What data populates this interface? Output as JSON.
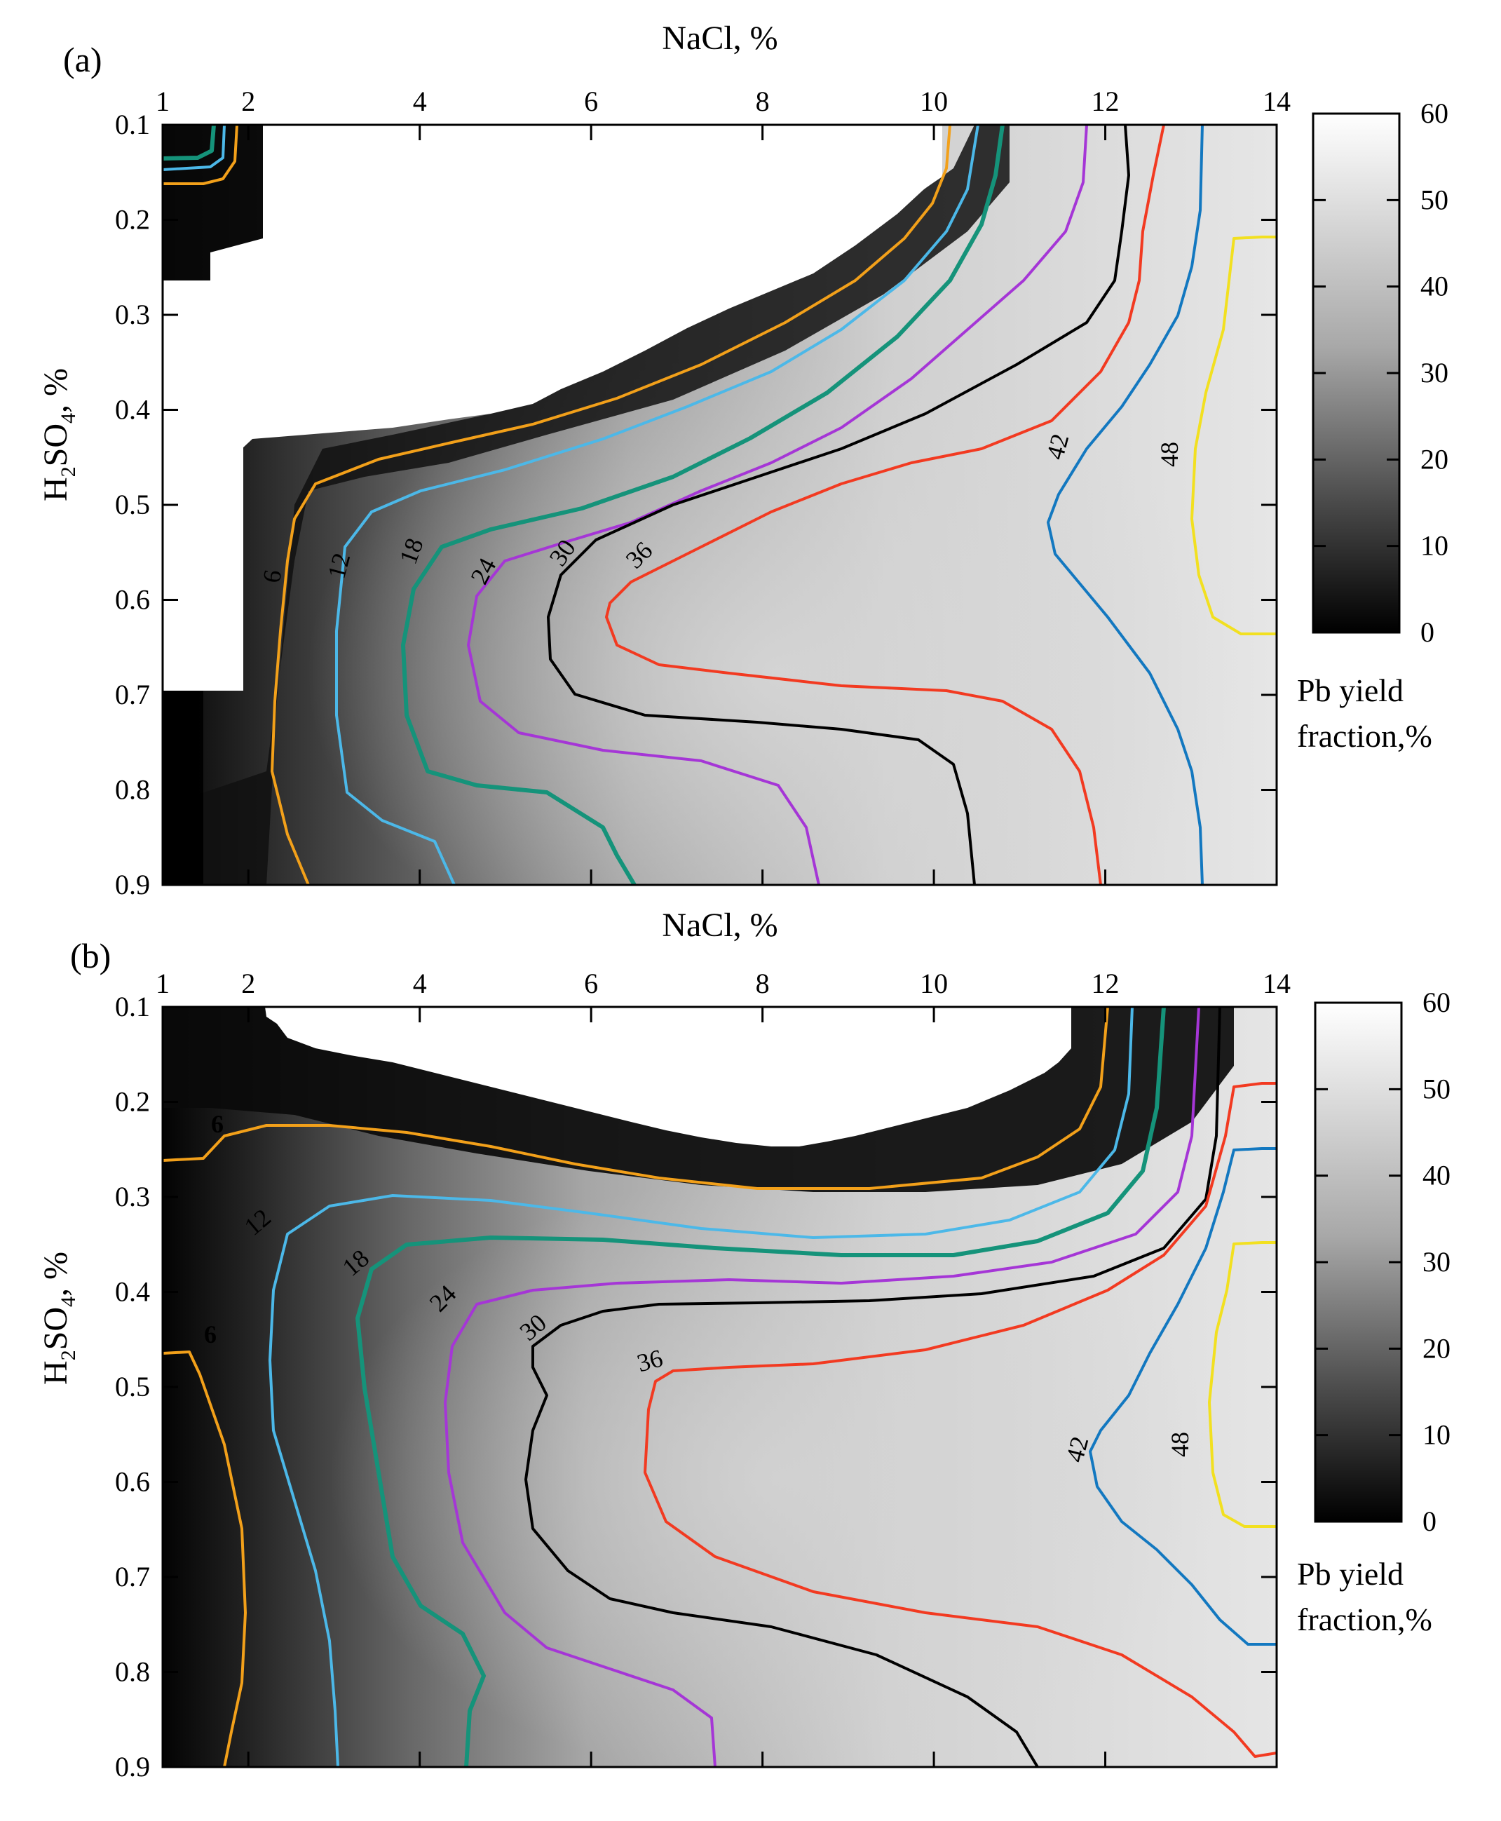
{
  "figure": {
    "color_scale": {
      "min": 0,
      "max": 60,
      "low_color": "#000000",
      "high_color": "#ffffff"
    },
    "contour_colors": {
      "6": "#f2a01a",
      "12": "#4cb8e8",
      "18": "#15937a",
      "24": "#a536d6",
      "30": "#000000",
      "36": "#f23a21",
      "42": "#1378c0",
      "48": "#f2e020"
    }
  },
  "chart_data": [
    {
      "type": "heatmap",
      "panel": "(a)",
      "title": "",
      "xlabel": "NaCl, %",
      "ylabel": "H2SO4, %",
      "ylabel_parts": {
        "main": "H",
        "sub1": "2",
        "mid": "SO",
        "sub2": "4",
        "tail": ", %"
      },
      "x_ticks": [
        1,
        2,
        4,
        6,
        8,
        10,
        12,
        14
      ],
      "y_ticks": [
        0.1,
        0.2,
        0.3,
        0.4,
        0.5,
        0.6,
        0.7,
        0.8,
        0.9
      ],
      "xlim": [
        1,
        14
      ],
      "ylim": [
        0.1,
        0.9
      ],
      "colorbar": {
        "ticks": [
          0,
          10,
          20,
          30,
          40,
          50,
          60
        ],
        "title_line1": "Pb yield",
        "title_line2": "fraction,%"
      },
      "contour_levels": [
        6,
        12,
        18,
        24,
        30,
        36,
        42,
        48
      ],
      "contour_label_text": [
        "6",
        "12",
        "18",
        "24",
        "30",
        "36",
        "42",
        "48"
      ]
    },
    {
      "type": "heatmap",
      "panel": "(b)",
      "title": "",
      "xlabel": "NaCl, %",
      "ylabel": "H2SO4, %",
      "ylabel_parts": {
        "main": "H",
        "sub1": "2",
        "mid": "SO",
        "sub2": "4",
        "tail": ", %"
      },
      "x_ticks": [
        1,
        2,
        4,
        6,
        8,
        10,
        12,
        14
      ],
      "y_ticks": [
        0.1,
        0.2,
        0.3,
        0.4,
        0.5,
        0.6,
        0.7,
        0.8,
        0.9
      ],
      "xlim": [
        1,
        14
      ],
      "ylim": [
        0.1,
        0.9
      ],
      "colorbar": {
        "ticks": [
          0,
          10,
          20,
          30,
          40,
          50,
          60
        ],
        "title_line1": "Pb yield",
        "title_line2": "fraction,%"
      },
      "contour_levels": [
        6,
        12,
        18,
        24,
        30,
        36,
        42,
        48
      ],
      "contour_label_text": [
        "6",
        "12",
        "18",
        "24",
        "30",
        "36",
        "42",
        "48",
        "6"
      ]
    }
  ]
}
